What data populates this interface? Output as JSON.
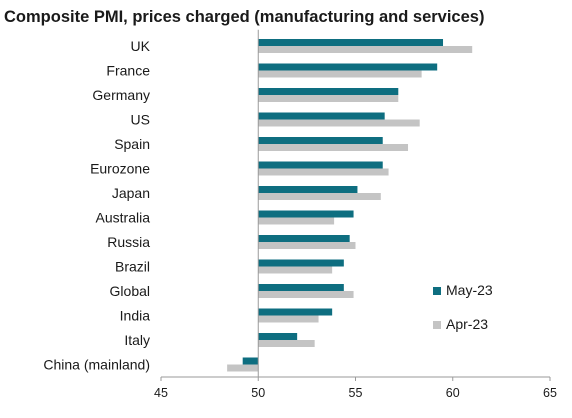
{
  "chart_data": {
    "type": "bar",
    "orientation": "horizontal",
    "title": "Composite PMI, prices charged (manufacturing and services)",
    "categories": [
      "UK",
      "France",
      "Germany",
      "US",
      "Spain",
      "Eurozone",
      "Japan",
      "Australia",
      "Russia",
      "Brazil",
      "Global",
      "India",
      "Italy",
      "China (mainland)"
    ],
    "series": [
      {
        "name": "May-23",
        "color": "#0e6e80",
        "values": [
          59.5,
          59.2,
          57.2,
          56.5,
          56.4,
          56.4,
          55.1,
          54.9,
          54.7,
          54.4,
          54.4,
          53.8,
          52.0,
          49.2
        ]
      },
      {
        "name": "Apr-23",
        "color": "#c4c4c4",
        "values": [
          61.0,
          58.4,
          57.2,
          58.3,
          57.7,
          56.7,
          56.3,
          53.9,
          55.0,
          53.8,
          54.9,
          53.1,
          52.9,
          48.4
        ]
      }
    ],
    "xlim": [
      45,
      65
    ],
    "xticks": [
      "45",
      "50",
      "55",
      "60",
      "65"
    ],
    "baseline": 50,
    "grid": false,
    "legend_position": "right"
  }
}
